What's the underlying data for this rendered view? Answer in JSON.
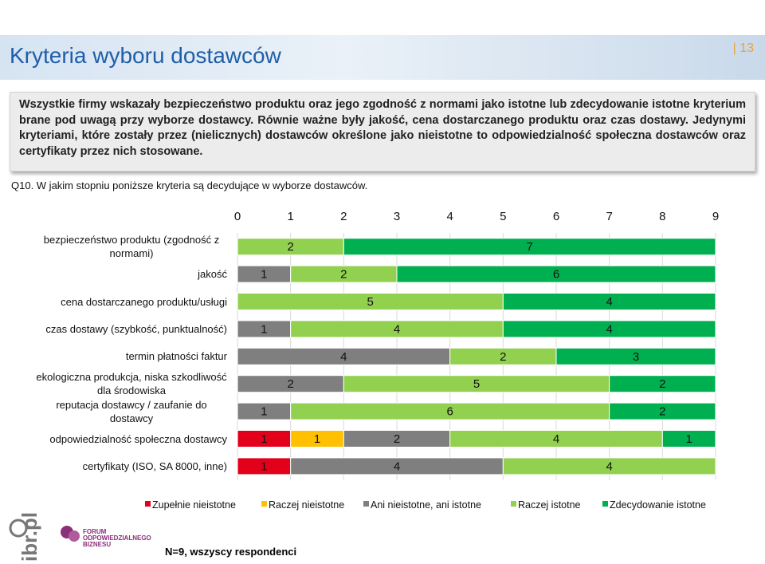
{
  "header": {
    "title": "Kryteria wyboru dostawców",
    "page": "| 13"
  },
  "summary": "Wszystkie firmy wskazały bezpieczeństwo produktu oraz jego zgodność z normami jako istotne lub zdecydowanie istotne kryterium brane pod uwagą przy wyborze dostawcy. Równie ważne były jakość, cena dostarczanego produktu oraz czas dostawy. Jedynymi kryteriami, które zostały przez (nielicznych) dostawców określone jako nieistotne to odpowiedzialność społeczna dostawców oraz certyfikaty przez nich stosowane.",
  "question": "Q10. W jakim stopniu poniższe kryteria są decydujące w wyborze dostawców.",
  "chart_data": {
    "type": "stacked-bar-horizontal",
    "categories": [
      "bezpieczeństwo produktu (zgodność z normami)",
      "jakość",
      "cena dostarczanego produktu/usługi",
      "czas dostawy (szybkość, punktualność)",
      "termin płatności faktur",
      "ekologiczna produkcja, niska szkodliwość dla środowiska",
      "reputacja dostawcy / zaufanie do dostawcy",
      "odpowiedzialność społeczna dostawcy",
      "certyfikaty (ISO, SA 8000, inne)"
    ],
    "series": [
      {
        "name": "Zupełnie nieistotne",
        "color": "#e3001b",
        "values": [
          null,
          null,
          null,
          null,
          null,
          null,
          null,
          1,
          1
        ]
      },
      {
        "name": "Raczej nieistotne",
        "color": "#ffc000",
        "values": [
          null,
          null,
          null,
          null,
          null,
          null,
          null,
          1,
          null
        ]
      },
      {
        "name": "Ani nieistotne, ani istotne",
        "color": "#7f7f7f",
        "values": [
          null,
          1,
          null,
          1,
          4,
          2,
          1,
          2,
          4
        ]
      },
      {
        "name": "Raczej istotne",
        "color": "#92d050",
        "values": [
          2,
          2,
          5,
          4,
          2,
          5,
          6,
          4,
          4
        ]
      },
      {
        "name": "Zdecydowanie istotne",
        "color": "#00b050",
        "values": [
          7,
          6,
          4,
          4,
          3,
          2,
          2,
          1,
          null
        ]
      }
    ],
    "xlim": [
      0,
      9
    ],
    "xticks": [
      0,
      1,
      2,
      3,
      4,
      5,
      6,
      7,
      8,
      9
    ],
    "grid": true
  },
  "footnote": "N=9, wszyscy respondenci",
  "logos": {
    "ibr": "ibr.pl",
    "forum": [
      "FORUM",
      "ODPOWIEDZIALNEGO",
      "BIZNESU"
    ]
  }
}
